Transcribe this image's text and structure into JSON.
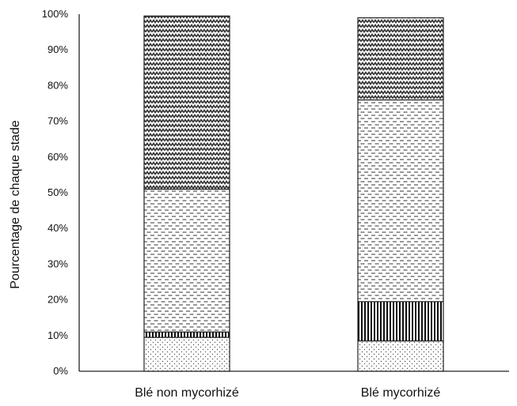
{
  "chart_data": {
    "type": "bar",
    "stacked": true,
    "percent": true,
    "title": "",
    "xlabel": "",
    "ylabel": "Pourcentage de chaque stade",
    "ylim": [
      0,
      100
    ],
    "yticks": [
      "0%",
      "10%",
      "20%",
      "30%",
      "40%",
      "50%",
      "60%",
      "70%",
      "80%",
      "90%",
      "100%"
    ],
    "categories": [
      "Blé non mycorhizé",
      "Blé mycorhizé"
    ],
    "series": [
      {
        "pattern": "dots",
        "values": [
          9.5,
          8.5
        ]
      },
      {
        "pattern": "vertical-lines",
        "values": [
          1.5,
          11
        ]
      },
      {
        "pattern": "dashes",
        "values": [
          40,
          56.5
        ]
      },
      {
        "pattern": "zigzag",
        "values": [
          48.5,
          23
        ]
      }
    ],
    "grid": false,
    "legend": "none"
  }
}
